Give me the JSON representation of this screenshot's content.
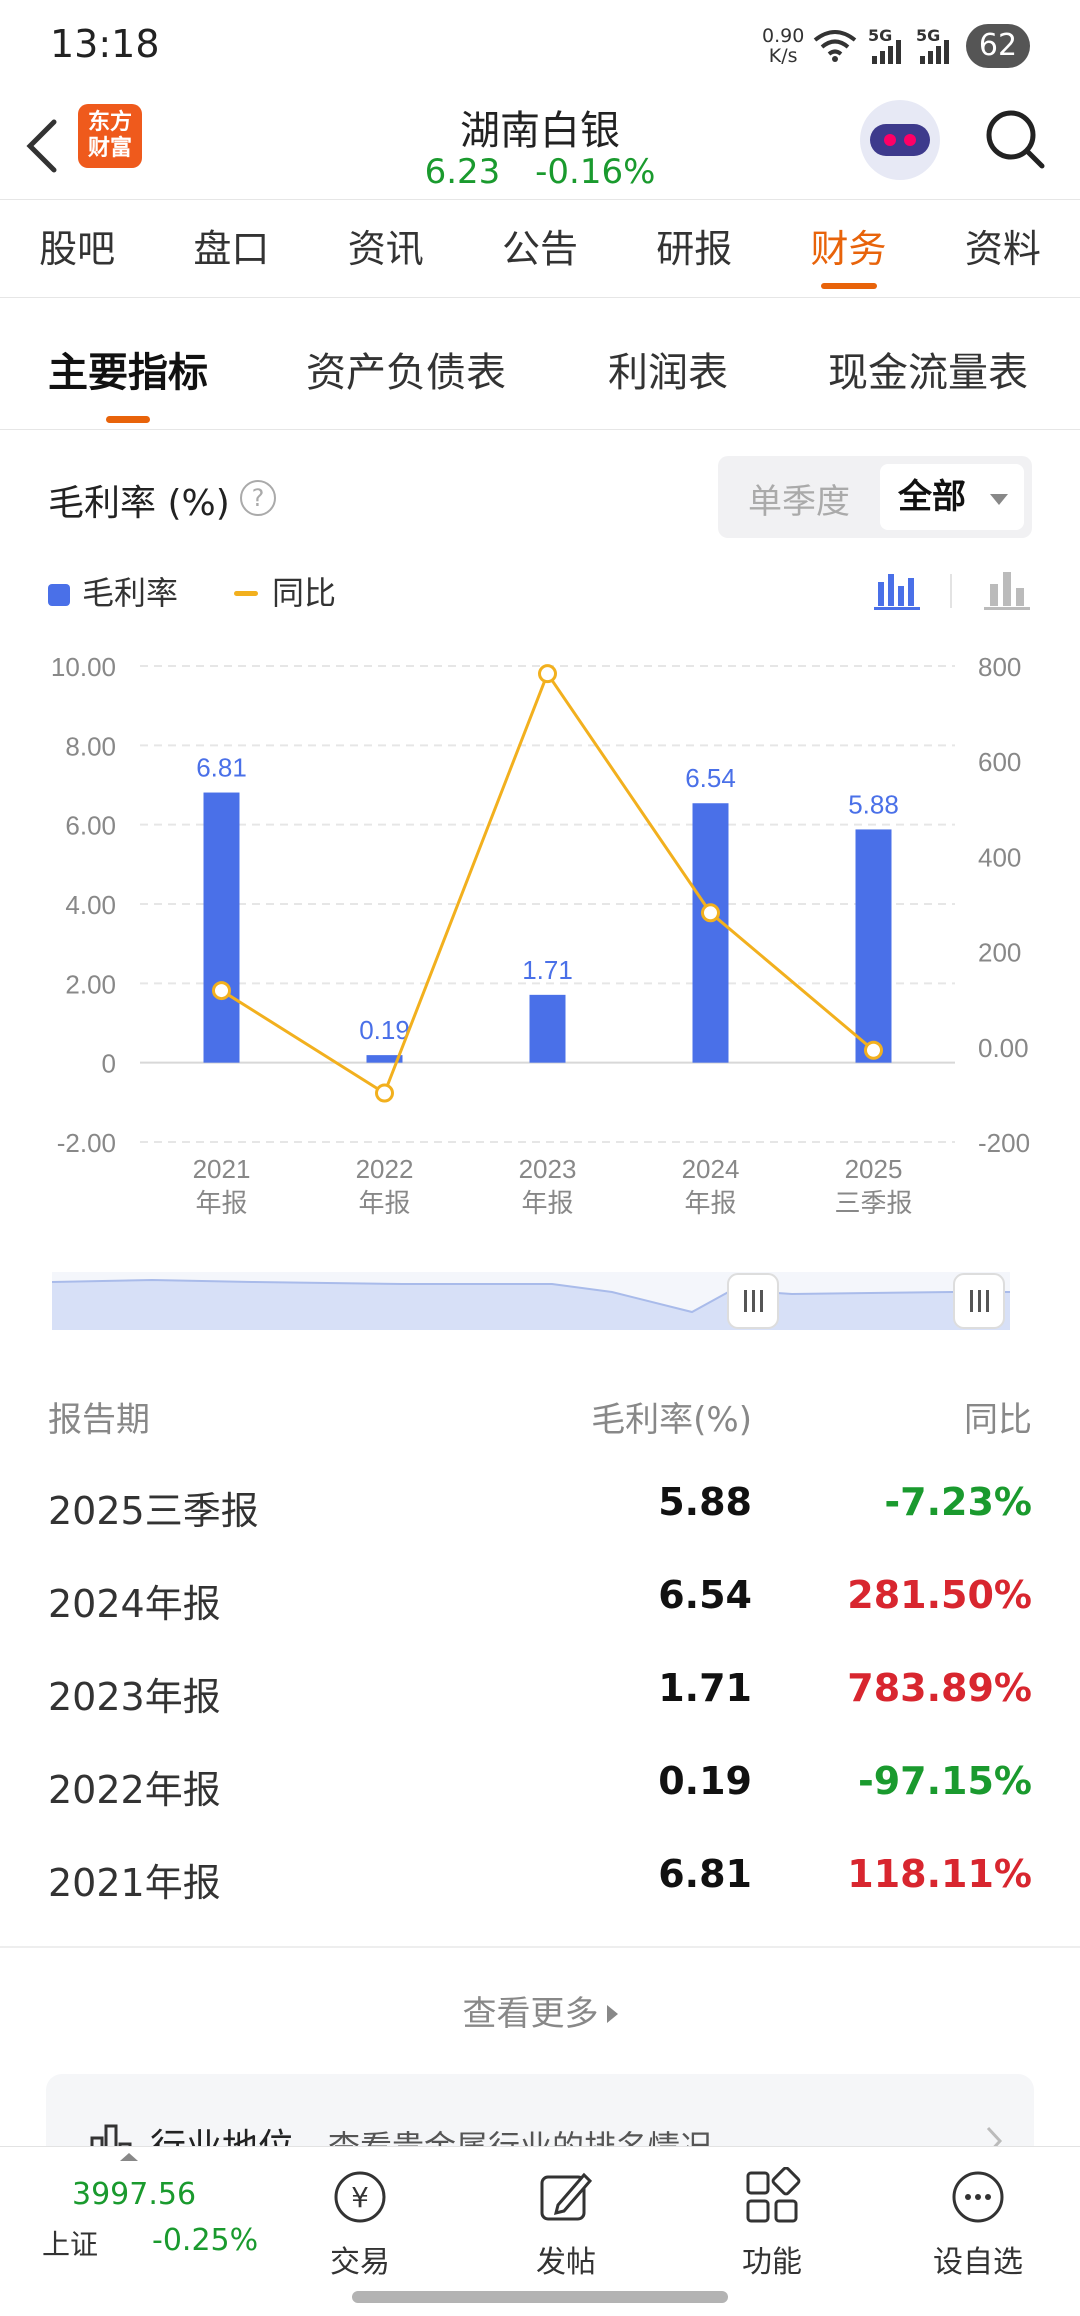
{
  "status": {
    "time": "13:18",
    "net_speed": "0.90",
    "net_unit": "K/s",
    "sim1": "5G",
    "sim2": "5G",
    "battery": "62"
  },
  "header": {
    "logo_line1": "东方",
    "logo_line2": "财富",
    "title": "湖南白银",
    "price": "6.23",
    "change": "-0.16%"
  },
  "tabs": [
    "股吧",
    "盘口",
    "资讯",
    "公告",
    "研报",
    "财务",
    "资料"
  ],
  "active_tab": "财务",
  "subtabs": [
    "主要指标",
    "资产负债表",
    "利润表",
    "现金流量表"
  ],
  "metric": {
    "title": "毛利率 (%)",
    "help": "?",
    "seg_single": "单季度",
    "seg_all": "全部"
  },
  "legend": {
    "bar": "毛利率",
    "line": "同比"
  },
  "colors": {
    "bar": "#4a70e8",
    "line": "#f2b01e",
    "accent": "#e8630a",
    "up": "#d8262f",
    "down": "#1a9a2e"
  },
  "chart_data": {
    "type": "bar",
    "categories": [
      "2021 年报",
      "2022 年报",
      "2023 年报",
      "2024 年报",
      "2025 三季报"
    ],
    "cat_line1": [
      "2021",
      "2022",
      "2023",
      "2024",
      "2025"
    ],
    "cat_line2": [
      "年报",
      "年报",
      "年报",
      "年报",
      "三季报"
    ],
    "series": [
      {
        "name": "毛利率",
        "type": "bar",
        "axis": "left",
        "values": [
          6.81,
          0.19,
          1.71,
          6.54,
          5.88
        ],
        "labels": [
          "6.81",
          "0.19",
          "1.71",
          "6.54",
          "5.88"
        ]
      },
      {
        "name": "同比",
        "type": "line",
        "axis": "right",
        "values": [
          118.11,
          -97.15,
          783.89,
          281.5,
          -7.23
        ]
      }
    ],
    "y_left": {
      "range": [
        -2,
        10
      ],
      "ticks": [
        "10.00",
        "8.00",
        "6.00",
        "4.00",
        "2.00",
        "0",
        "-2.00"
      ],
      "tick_values": [
        10,
        8,
        6,
        4,
        2,
        0,
        -2
      ]
    },
    "y_right": {
      "range": [
        -200,
        800
      ],
      "ticks": [
        "800",
        "600",
        "400",
        "200",
        "0.00",
        "-200"
      ],
      "tick_values": [
        800,
        600,
        400,
        200,
        0,
        -200
      ]
    },
    "grid": true
  },
  "table": {
    "headers": [
      "报告期",
      "毛利率(%)",
      "同比"
    ],
    "rows": [
      {
        "period": "2025三季报",
        "value": "5.88",
        "yoy": "-7.23%",
        "dir": "down"
      },
      {
        "period": "2024年报",
        "value": "6.54",
        "yoy": "281.50%",
        "dir": "up"
      },
      {
        "period": "2023年报",
        "value": "1.71",
        "yoy": "783.89%",
        "dir": "up"
      },
      {
        "period": "2022年报",
        "value": "0.19",
        "yoy": "-97.15%",
        "dir": "down"
      },
      {
        "period": "2021年报",
        "value": "6.81",
        "yoy": "118.11%",
        "dir": "up"
      }
    ]
  },
  "more": "查看更多",
  "industry_card": {
    "title": "行业地位",
    "desc": "查看贵金属行业的排名情况"
  },
  "bottom": {
    "index_value": "3997.56",
    "index_name": "上证",
    "index_change": "-0.25%",
    "items": [
      "交易",
      "发帖",
      "功能",
      "设自选"
    ]
  }
}
